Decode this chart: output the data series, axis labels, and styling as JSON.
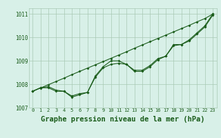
{
  "title": "Graphe pression niveau de la mer (hPa)",
  "hours": [
    0,
    1,
    2,
    3,
    4,
    5,
    6,
    7,
    8,
    9,
    10,
    11,
    12,
    13,
    14,
    15,
    16,
    17,
    18,
    19,
    20,
    21,
    22,
    23
  ],
  "trend": [
    1007.7,
    1007.84,
    1007.98,
    1008.12,
    1008.26,
    1008.41,
    1008.55,
    1008.69,
    1008.83,
    1008.97,
    1009.11,
    1009.25,
    1009.39,
    1009.54,
    1009.68,
    1009.82,
    1009.96,
    1010.1,
    1010.24,
    1010.38,
    1010.52,
    1010.67,
    1010.81,
    1011.0
  ],
  "measured": [
    1007.7,
    1007.85,
    1007.85,
    1007.7,
    1007.7,
    1007.5,
    1007.6,
    1007.65,
    1008.35,
    1008.75,
    1009.0,
    1009.0,
    1008.85,
    1008.6,
    1008.6,
    1008.8,
    1009.1,
    1009.2,
    1009.7,
    1009.7,
    1009.9,
    1010.2,
    1010.5,
    1011.0
  ],
  "measured2": [
    1007.7,
    1007.85,
    1007.9,
    1007.75,
    1007.7,
    1007.45,
    1007.55,
    1007.65,
    1008.3,
    1008.7,
    1008.85,
    1008.9,
    1008.85,
    1008.55,
    1008.55,
    1008.75,
    1009.05,
    1009.2,
    1009.65,
    1009.7,
    1009.85,
    1010.15,
    1010.45,
    1010.95
  ],
  "ylim_min": 1007.0,
  "ylim_max": 1011.25,
  "yticks": [
    1007,
    1008,
    1009,
    1010,
    1011
  ],
  "line_color": "#1a5c1a",
  "bg_color": "#d8f0e8",
  "grid_color": "#a8c8b4",
  "label_color": "#1a5c1a",
  "title_color": "#1a5c1a",
  "tick_fontsize": 5.0,
  "title_fontsize": 7.5
}
